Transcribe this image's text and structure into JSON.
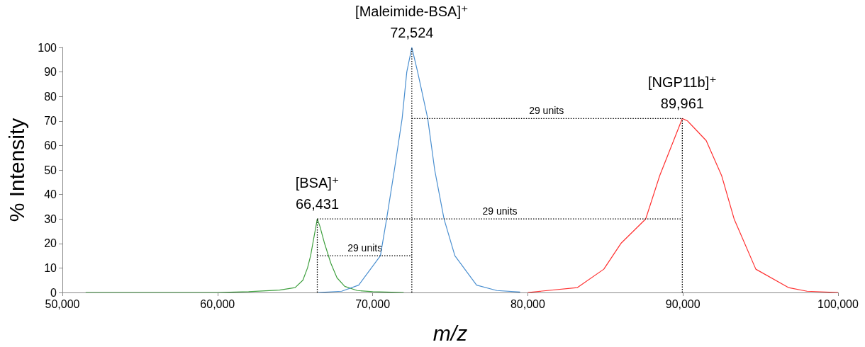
{
  "chart_data": {
    "type": "line",
    "xlabel": "m/z",
    "ylabel": "% Intensity",
    "xlim": [
      50000,
      100000
    ],
    "xticks": [
      {
        "value": 50000,
        "label": "50,000"
      },
      {
        "value": 60000,
        "label": "60,000"
      },
      {
        "value": 70000,
        "label": "70,000"
      },
      {
        "value": 80000,
        "label": "80,000"
      },
      {
        "value": 90000,
        "label": "90,000"
      },
      {
        "value": 100000,
        "label": "100,000"
      }
    ],
    "ylim": [
      0,
      100
    ],
    "yticks": [
      0,
      10,
      20,
      30,
      40,
      50,
      60,
      70,
      80,
      90,
      100
    ],
    "grid": false,
    "marker": "none",
    "line_style": "solid",
    "series": [
      {
        "color": "#3fa03f",
        "x": [
          51500,
          60000,
          62000,
          64000,
          65000,
          65500,
          65800,
          66000,
          66200,
          66431,
          66600,
          66900,
          67300,
          67700,
          68200,
          69000,
          70000,
          72000
        ],
        "values": [
          0,
          0,
          0.3,
          1,
          2,
          5,
          10,
          15,
          22,
          30,
          27,
          20,
          12,
          6,
          2.5,
          0.8,
          0.3,
          0
        ]
      },
      {
        "color": "#4a8fd0",
        "x": [
          66500,
          68000,
          69100,
          70500,
          70900,
          71400,
          71900,
          72200,
          72524,
          72900,
          73550,
          74000,
          74600,
          75300,
          76700,
          78000,
          79500
        ],
        "values": [
          0,
          0.5,
          3,
          15,
          30,
          50,
          71,
          90,
          100,
          90,
          71,
          50,
          30,
          15,
          3,
          0.8,
          0.2
        ]
      },
      {
        "color": "#ff3030",
        "x": [
          80000,
          83200,
          84900,
          86000,
          87600,
          88500,
          89400,
          89961,
          90300,
          90600,
          91500,
          92500,
          93300,
          94700,
          96800,
          98000,
          100000
        ],
        "values": [
          0,
          2,
          9.5,
          20,
          30,
          47.6,
          62,
          71,
          70,
          68,
          62,
          47.6,
          30,
          9.5,
          2,
          0.5,
          0
        ]
      },
      {
        "color": "#000000",
        "line_style": "dotted",
        "x": [
          66431,
          66431
        ],
        "values": [
          0,
          30
        ]
      },
      {
        "color": "#000000",
        "line_style": "dotted",
        "x": [
          72524,
          72524
        ],
        "values": [
          0,
          100
        ]
      },
      {
        "color": "#000000",
        "line_style": "dotted",
        "x": [
          89961,
          89961
        ],
        "values": [
          0,
          71
        ]
      },
      {
        "color": "#000000",
        "line_style": "dotted",
        "x": [
          66431,
          72524
        ],
        "values": [
          15,
          15
        ]
      },
      {
        "color": "#000000",
        "line_style": "dotted",
        "x": [
          66431,
          89961
        ],
        "values": [
          30,
          30
        ]
      },
      {
        "color": "#000000",
        "line_style": "dotted",
        "x": [
          72524,
          89961
        ],
        "values": [
          71,
          71
        ]
      }
    ],
    "annotations": [
      {
        "text": "[BSA]⁺\n66,431",
        "x": 66431,
        "y": 30
      },
      {
        "text": "[Maleimide-BSA]⁺\n72,524",
        "x": 72524,
        "y": 100
      },
      {
        "text": "[NGP11b]⁺\n89,961",
        "x": 89961,
        "y": 71
      },
      {
        "text": "29 units",
        "x": 69500,
        "y": 15
      },
      {
        "text": "29 units",
        "x": 78200,
        "y": 30
      },
      {
        "text": "29 units",
        "x": 81200,
        "y": 71
      }
    ]
  }
}
